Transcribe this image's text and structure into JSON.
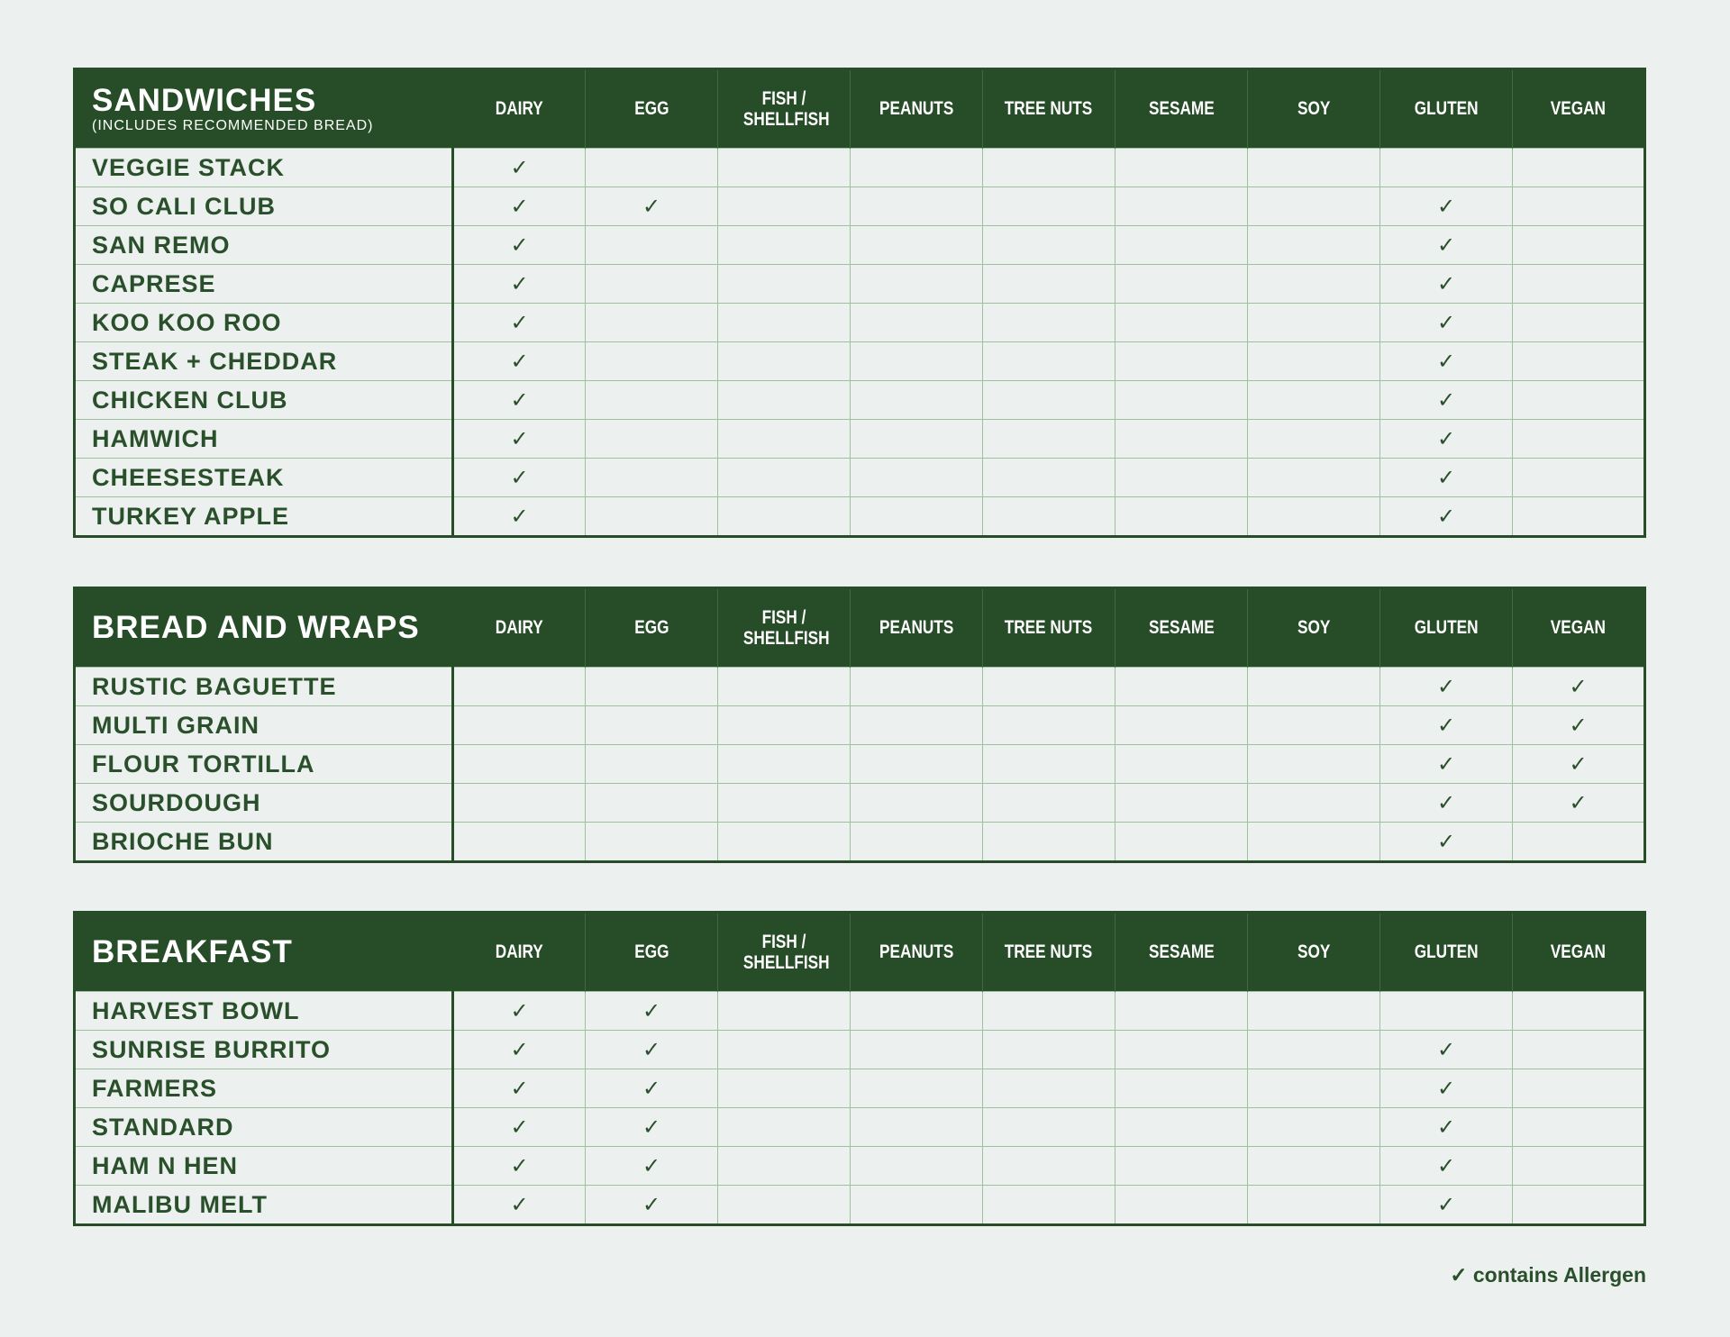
{
  "colors": {
    "header_bg": "#264d27",
    "page_bg": "#ecf1f0",
    "grid": "#9fc09e",
    "text": "#2a4f2b"
  },
  "check_icon": "check-mark",
  "check_glyph": "✓",
  "columns": [
    "DAIRY",
    "EGG",
    "FISH / SHELLFISH",
    "PEANUTS",
    "TREE NUTS",
    "SESAME",
    "SOY",
    "GLUTEN",
    "VEGAN"
  ],
  "tables": [
    {
      "title": "SANDWICHES",
      "subtitle": "(INCLUDES RECOMMENDED BREAD)",
      "rows": [
        {
          "name": "VEGGIE STACK",
          "marks": [
            1,
            0,
            0,
            0,
            0,
            0,
            0,
            0,
            0
          ]
        },
        {
          "name": "SO CALI CLUB",
          "marks": [
            1,
            1,
            0,
            0,
            0,
            0,
            0,
            1,
            0
          ]
        },
        {
          "name": "SAN REMO",
          "marks": [
            1,
            0,
            0,
            0,
            0,
            0,
            0,
            1,
            0
          ]
        },
        {
          "name": "CAPRESE",
          "marks": [
            1,
            0,
            0,
            0,
            0,
            0,
            0,
            1,
            0
          ]
        },
        {
          "name": "KOO KOO ROO",
          "marks": [
            1,
            0,
            0,
            0,
            0,
            0,
            0,
            1,
            0
          ]
        },
        {
          "name": "STEAK + CHEDDAR",
          "marks": [
            1,
            0,
            0,
            0,
            0,
            0,
            0,
            1,
            0
          ]
        },
        {
          "name": "CHICKEN CLUB",
          "marks": [
            1,
            0,
            0,
            0,
            0,
            0,
            0,
            1,
            0
          ]
        },
        {
          "name": "HAMWICH",
          "marks": [
            1,
            0,
            0,
            0,
            0,
            0,
            0,
            1,
            0
          ]
        },
        {
          "name": "CHEESESTEAK",
          "marks": [
            1,
            0,
            0,
            0,
            0,
            0,
            0,
            1,
            0
          ]
        },
        {
          "name": "TURKEY APPLE",
          "marks": [
            1,
            0,
            0,
            0,
            0,
            0,
            0,
            1,
            0
          ]
        }
      ]
    },
    {
      "title": "BREAD AND WRAPS",
      "subtitle": "",
      "rows": [
        {
          "name": "RUSTIC BAGUETTE",
          "marks": [
            0,
            0,
            0,
            0,
            0,
            0,
            0,
            1,
            1
          ]
        },
        {
          "name": "MULTI GRAIN",
          "marks": [
            0,
            0,
            0,
            0,
            0,
            0,
            0,
            1,
            1
          ]
        },
        {
          "name": "FLOUR TORTILLA",
          "marks": [
            0,
            0,
            0,
            0,
            0,
            0,
            0,
            1,
            1
          ]
        },
        {
          "name": "SOURDOUGH",
          "marks": [
            0,
            0,
            0,
            0,
            0,
            0,
            0,
            1,
            1
          ]
        },
        {
          "name": "BRIOCHE BUN",
          "marks": [
            0,
            0,
            0,
            0,
            0,
            0,
            0,
            1,
            0
          ]
        }
      ]
    },
    {
      "title": "BREAKFAST",
      "subtitle": "",
      "rows": [
        {
          "name": "HARVEST BOWL",
          "marks": [
            1,
            1,
            0,
            0,
            0,
            0,
            0,
            0,
            0
          ]
        },
        {
          "name": "SUNRISE BURRITO",
          "marks": [
            1,
            1,
            0,
            0,
            0,
            0,
            0,
            1,
            0
          ]
        },
        {
          "name": "FARMERS",
          "marks": [
            1,
            1,
            0,
            0,
            0,
            0,
            0,
            1,
            0
          ]
        },
        {
          "name": "STANDARD",
          "marks": [
            1,
            1,
            0,
            0,
            0,
            0,
            0,
            1,
            0
          ]
        },
        {
          "name": "HAM N HEN",
          "marks": [
            1,
            1,
            0,
            0,
            0,
            0,
            0,
            1,
            0
          ]
        },
        {
          "name": "MALIBU MELT",
          "marks": [
            1,
            1,
            0,
            0,
            0,
            0,
            0,
            1,
            0
          ]
        }
      ]
    }
  ],
  "legend": "✓ contains Allergen"
}
